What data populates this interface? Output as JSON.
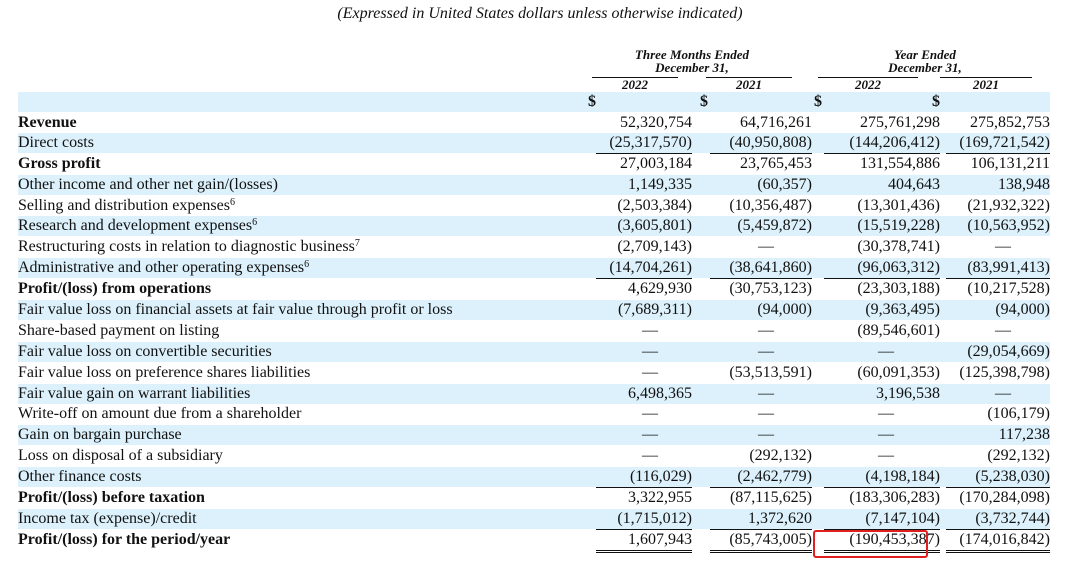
{
  "subtitle": "(Expressed in United States dollars unless otherwise indicated)",
  "header": {
    "group1": {
      "line1": "Three Months Ended",
      "line2": "December 31,"
    },
    "group2": {
      "line1": "Year Ended",
      "line2": "December 31,"
    },
    "years": [
      "2022",
      "2021",
      "2022",
      "2021"
    ],
    "currency": "$"
  },
  "rows": [
    {
      "label": "Revenue",
      "bold": true,
      "values": [
        "52,320,754",
        "64,716,261",
        "275,761,298",
        "275,852,753"
      ]
    },
    {
      "label": "Direct costs",
      "values": [
        "(25,317,570)",
        "(40,950,808)",
        "(144,206,412)",
        "(169,721,542)"
      ],
      "underline": true
    },
    {
      "label": "Gross profit",
      "bold": true,
      "values": [
        "27,003,184",
        "23,765,453",
        "131,554,886",
        "106,131,211"
      ]
    },
    {
      "label": "Other income and other net gain/(losses)",
      "values": [
        "1,149,335",
        "(60,357)",
        "404,643",
        "138,948"
      ]
    },
    {
      "label": "Selling and distribution expenses",
      "sup": "6",
      "values": [
        "(2,503,384)",
        "(10,356,487)",
        "(13,301,436)",
        "(21,932,322)"
      ]
    },
    {
      "label": "Research and development expenses",
      "sup": "6",
      "values": [
        "(3,605,801)",
        "(5,459,872)",
        "(15,519,228)",
        "(10,563,952)"
      ]
    },
    {
      "label": "Restructuring costs in relation to diagnostic business",
      "sup": "7",
      "values": [
        "(2,709,143)",
        "—",
        "(30,378,741)",
        "—"
      ]
    },
    {
      "label": "Administrative and other operating expenses",
      "sup": "6",
      "values": [
        "(14,704,261)",
        "(38,641,860)",
        "(96,063,312)",
        "(83,991,413)"
      ],
      "underline": true
    },
    {
      "label": "Profit/(loss) from operations",
      "bold": true,
      "values": [
        "4,629,930",
        "(30,753,123)",
        "(23,303,188)",
        "(10,217,528)"
      ]
    },
    {
      "label": "Fair value loss on financial assets at fair value through profit or loss",
      "values": [
        "(7,689,311)",
        "(94,000)",
        "(9,363,495)",
        "(94,000)"
      ]
    },
    {
      "label": "Share-based payment on listing",
      "values": [
        "—",
        "—",
        "(89,546,601)",
        "—"
      ]
    },
    {
      "label": "Fair value loss on convertible securities",
      "values": [
        "—",
        "—",
        "—",
        "(29,054,669)"
      ]
    },
    {
      "label": "Fair value loss on preference shares liabilities",
      "values": [
        "—",
        "(53,513,591)",
        "(60,091,353)",
        "(125,398,798)"
      ]
    },
    {
      "label": "Fair value gain on warrant liabilities",
      "values": [
        "6,498,365",
        "—",
        "3,196,538",
        "—"
      ]
    },
    {
      "label": "Write-off on amount due from a shareholder",
      "values": [
        "—",
        "—",
        "—",
        "(106,179)"
      ]
    },
    {
      "label": "Gain on bargain purchase",
      "values": [
        "—",
        "—",
        "—",
        "117,238"
      ]
    },
    {
      "label": "Loss on disposal of a subsidiary",
      "values": [
        "—",
        "(292,132)",
        "—",
        "(292,132)"
      ]
    },
    {
      "label": "Other finance costs",
      "values": [
        "(116,029)",
        "(2,462,779)",
        "(4,198,184)",
        "(5,238,030)"
      ],
      "underline": true
    },
    {
      "label": "Profit/(loss) before taxation",
      "bold": true,
      "values": [
        "3,322,955",
        "(87,115,625)",
        "(183,306,283)",
        "(170,284,098)"
      ]
    },
    {
      "label": "Income tax (expense)/credit",
      "values": [
        "(1,715,012)",
        "1,372,620",
        "(7,147,104)",
        "(3,732,744)"
      ],
      "underline": true
    },
    {
      "label": "Profit/(loss) for the period/year",
      "bold": true,
      "values": [
        "1,607,943",
        "(85,743,005)",
        "(190,453,387)",
        "(174,016,842)"
      ],
      "double": true
    }
  ],
  "accent": {
    "shade": "#dcf1fb",
    "highlight": "#e02020"
  }
}
